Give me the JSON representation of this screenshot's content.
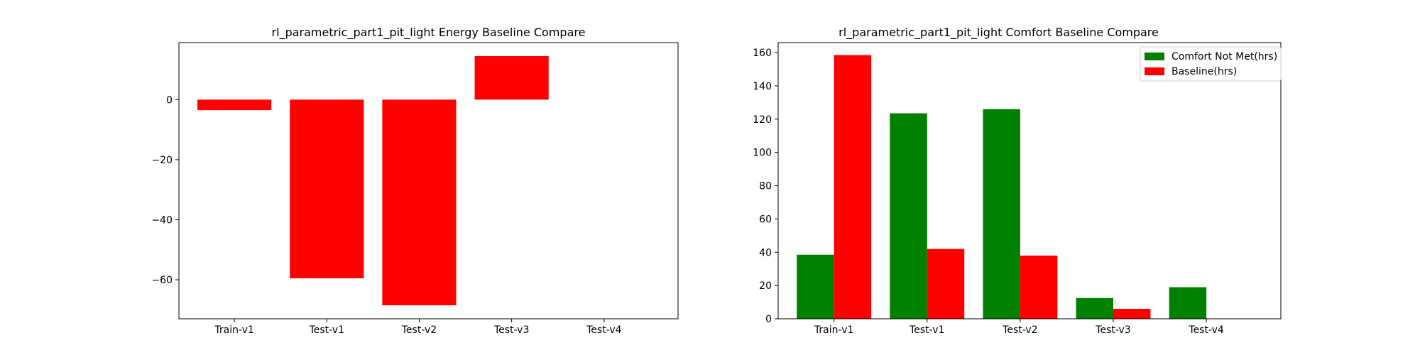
{
  "chart_data": [
    {
      "type": "bar",
      "title": "rl_parametric_part1_pit_light Energy Baseline Compare",
      "xlabel": "",
      "ylabel": "",
      "categories": [
        "Train-v1",
        "Test-v1",
        "Test-v2",
        "Test-v3",
        "Test-v4"
      ],
      "series": [
        {
          "values": [
            -3.5,
            -59.5,
            -68.5,
            14.5,
            0
          ],
          "color": "#ff0000"
        }
      ],
      "ylim": [
        -73,
        19
      ],
      "yticks": [
        0,
        -20,
        -40,
        -60
      ],
      "ytick_labels": [
        "0",
        "−20",
        "−40",
        "−60"
      ],
      "grid": false,
      "legend": "none"
    },
    {
      "type": "bar",
      "title": "rl_parametric_part1_pit_light Comfort Baseline Compare",
      "xlabel": "",
      "ylabel": "",
      "categories": [
        "Train-v1",
        "Test-v1",
        "Test-v2",
        "Test-v3",
        "Test-v4"
      ],
      "series": [
        {
          "name": "Comfort Not Met(hrs)",
          "values": [
            38.5,
            123.5,
            126,
            12.5,
            19
          ],
          "color": "#008000"
        },
        {
          "name": "Baseline(hrs)",
          "values": [
            158.5,
            42,
            38,
            6,
            0
          ],
          "color": "#ff0000"
        }
      ],
      "ylim": [
        0,
        166
      ],
      "yticks": [
        0,
        20,
        40,
        60,
        80,
        100,
        120,
        140,
        160
      ],
      "ytick_labels": [
        "0",
        "20",
        "40",
        "60",
        "80",
        "100",
        "120",
        "140",
        "160"
      ],
      "grid": false,
      "legend": "top-right"
    }
  ]
}
